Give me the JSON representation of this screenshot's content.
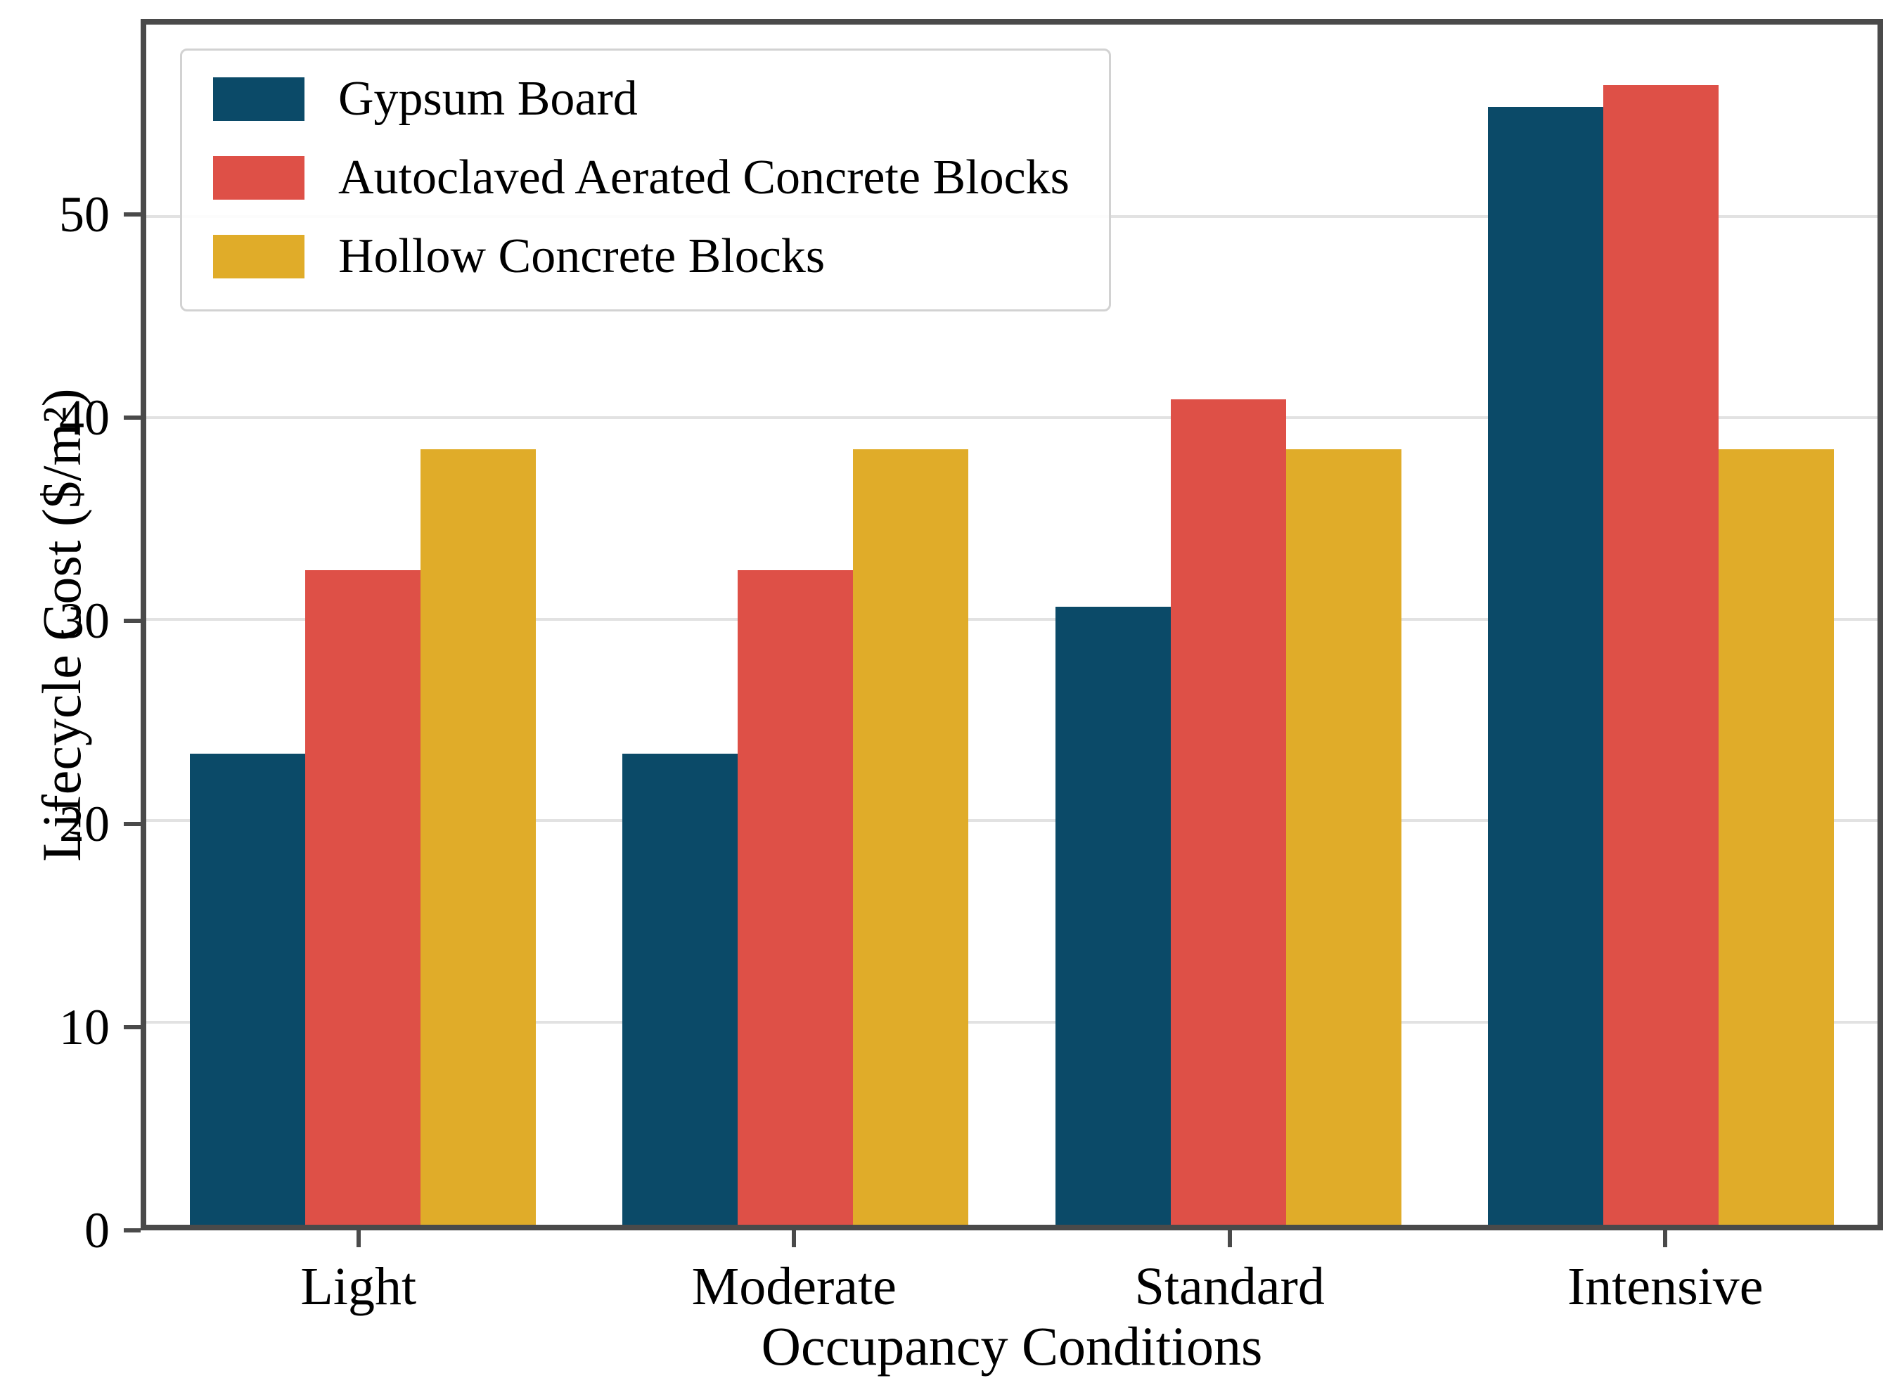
{
  "chart_data": {
    "type": "bar",
    "title": "",
    "xlabel": "Occupancy Conditions",
    "ylabel": "Lifecycle Cost ($/m²)",
    "categories": [
      "Light",
      "Moderate",
      "Standard",
      "Intensive"
    ],
    "series": [
      {
        "name": "Gypsum Board",
        "color": "#0b4a68",
        "values": [
          23.4,
          23.4,
          30.7,
          55.5
        ]
      },
      {
        "name": "Autoclaved Aerated Concrete Blocks",
        "color": "#de5047",
        "values": [
          32.5,
          32.5,
          41.0,
          56.6
        ]
      },
      {
        "name": "Hollow Concrete Blocks",
        "color": "#e0ac29",
        "values": [
          38.5,
          38.5,
          38.5,
          38.5
        ]
      }
    ],
    "ylim": [
      0,
      59.6
    ],
    "yticks": [
      0,
      10,
      20,
      30,
      40,
      50
    ],
    "grid": true,
    "legend_position": "upper-left"
  }
}
